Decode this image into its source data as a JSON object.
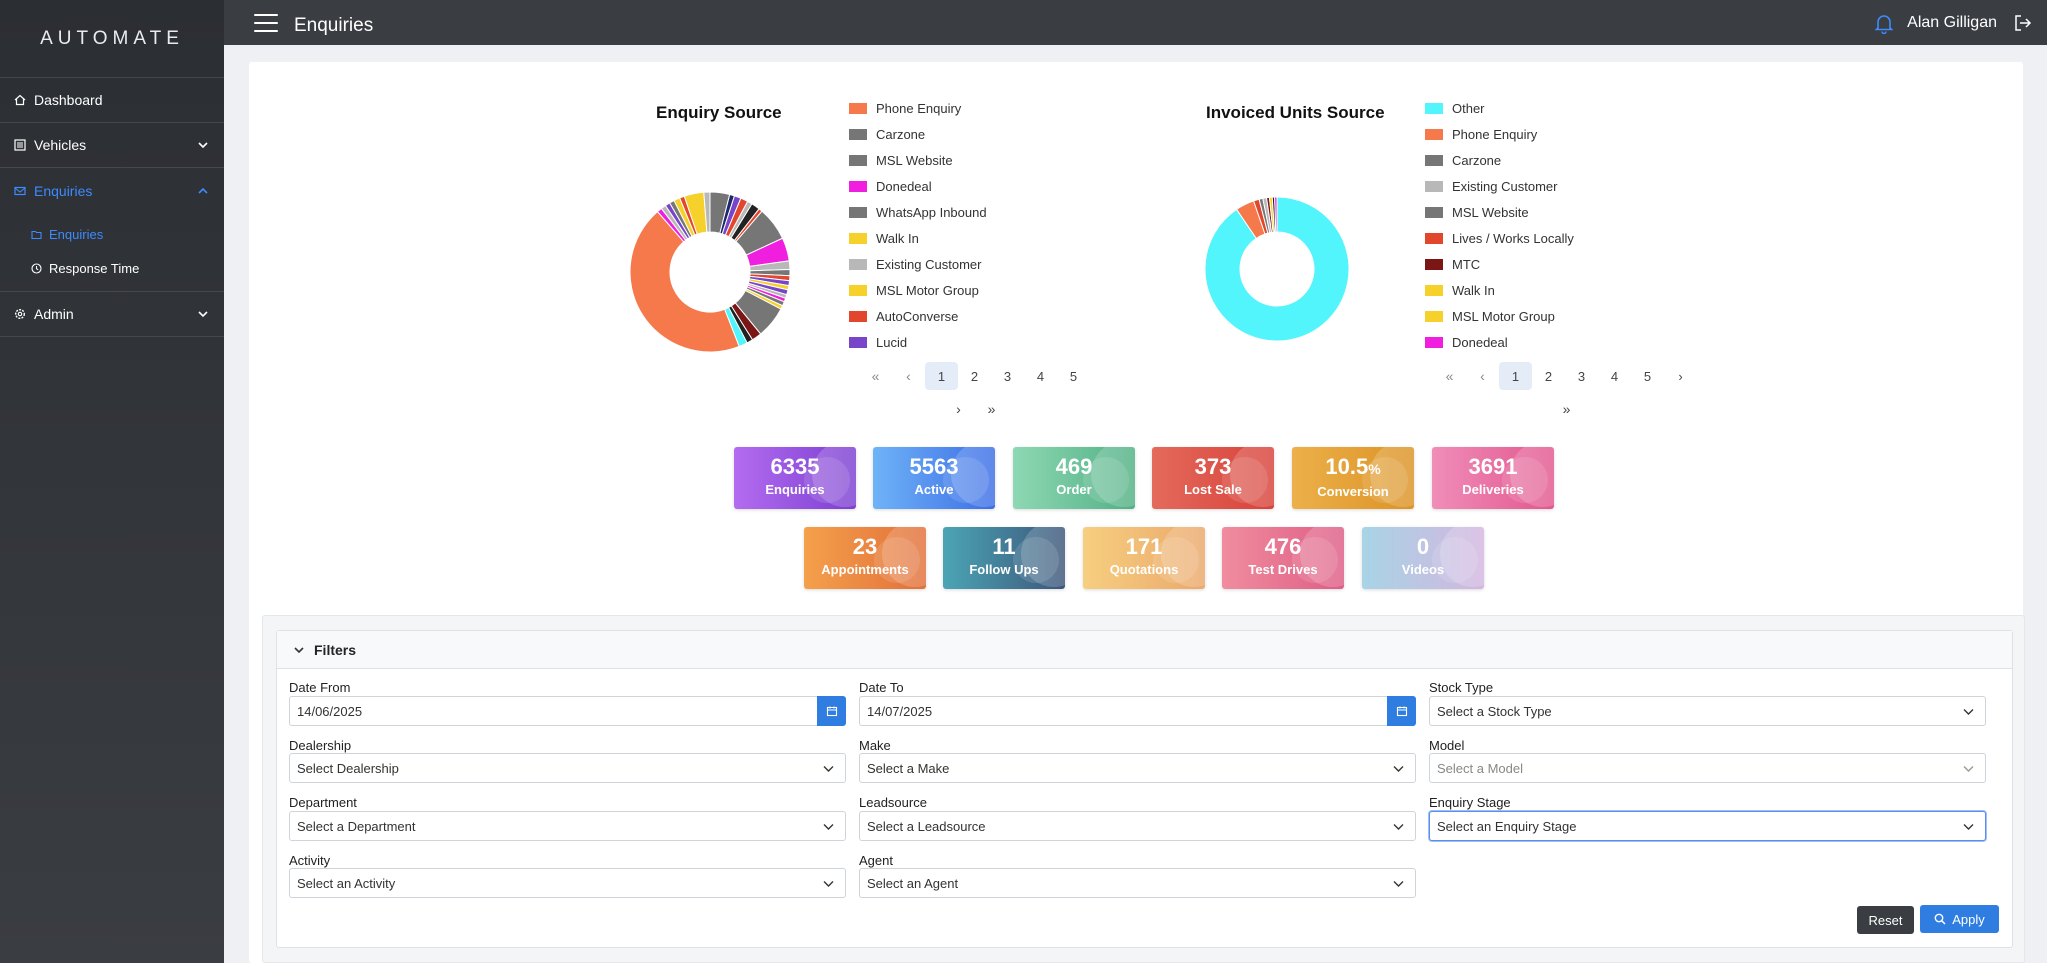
{
  "app": {
    "logo_text": "AUTOMATE"
  },
  "sidebar": {
    "items": [
      {
        "label": "Dashboard",
        "icon": "home-icon"
      },
      {
        "label": "Vehicles",
        "icon": "list-icon"
      },
      {
        "label": "Enquiries",
        "icon": "mail-icon"
      },
      {
        "label": "Admin",
        "icon": "gear-icon"
      }
    ],
    "subitems": [
      {
        "label": "Enquiries",
        "icon": "folder-icon"
      },
      {
        "label": "Response Time",
        "icon": "clock-icon"
      }
    ]
  },
  "header": {
    "title": "Enquiries",
    "user_name": "Alan Gilligan"
  },
  "enquiry_chart": {
    "title": "Enquiry Source",
    "legend": [
      {
        "label": "Phone Enquiry",
        "color": "#f5794a"
      },
      {
        "label": "Carzone",
        "color": "#767676"
      },
      {
        "label": "MSL Website",
        "color": "#767676"
      },
      {
        "label": "Donedeal",
        "color": "#f01fe0"
      },
      {
        "label": "WhatsApp Inbound",
        "color": "#767676"
      },
      {
        "label": "Walk In",
        "color": "#f6d02b"
      },
      {
        "label": "Existing Customer",
        "color": "#b8b8b8"
      },
      {
        "label": "MSL Motor Group",
        "color": "#f6d02b"
      },
      {
        "label": "AutoConverse",
        "color": "#e2472d"
      },
      {
        "label": "Lucid",
        "color": "#7845c9"
      }
    ],
    "pages": [
      "1",
      "2",
      "3",
      "4",
      "5"
    ],
    "current_page": "1"
  },
  "invoiced_chart": {
    "title": "Invoiced Units Source",
    "legend": [
      {
        "label": "Other",
        "color": "#52f5fb"
      },
      {
        "label": "Phone Enquiry",
        "color": "#f5794a"
      },
      {
        "label": "Carzone",
        "color": "#767676"
      },
      {
        "label": "Existing Customer",
        "color": "#b8b8b8"
      },
      {
        "label": "MSL Website",
        "color": "#767676"
      },
      {
        "label": "Lives / Works Locally",
        "color": "#e2472d"
      },
      {
        "label": "MTC",
        "color": "#7a1616"
      },
      {
        "label": "Walk In",
        "color": "#f6d02b"
      },
      {
        "label": "MSL Motor Group",
        "color": "#f6d02b"
      },
      {
        "label": "Donedeal",
        "color": "#f01fe0"
      }
    ],
    "pages": [
      "1",
      "2",
      "3",
      "4",
      "5"
    ],
    "current_page": "1"
  },
  "stats_row1": [
    {
      "value": "6335",
      "label": "Enquiries",
      "suffix": "",
      "colors": [
        "#b36cf0",
        "#7c3fd1"
      ]
    },
    {
      "value": "5563",
      "label": "Active",
      "suffix": "",
      "colors": [
        "#6fb3f7",
        "#3c6ee6"
      ]
    },
    {
      "value": "469",
      "label": "Order",
      "suffix": "",
      "colors": [
        "#8ed8b4",
        "#52b085"
      ]
    },
    {
      "value": "373",
      "label": "Lost Sale",
      "suffix": "",
      "colors": [
        "#e46a5c",
        "#d8423a"
      ]
    },
    {
      "value": "10.5",
      "label": "Conversion",
      "suffix": "%",
      "colors": [
        "#ecb04a",
        "#dc9325"
      ]
    },
    {
      "value": "3691",
      "label": "Deliveries",
      "suffix": "",
      "colors": [
        "#f08db8",
        "#e2578f"
      ]
    }
  ],
  "stats_row2": [
    {
      "value": "23",
      "label": "Appointments",
      "suffix": "",
      "colors": [
        "#f4a04c",
        "#e2703a"
      ]
    },
    {
      "value": "11",
      "label": "Follow Ups",
      "suffix": "",
      "colors": [
        "#4ba5b5",
        "#3c567a"
      ]
    },
    {
      "value": "171",
      "label": "Quotations",
      "suffix": "",
      "colors": [
        "#f6cf80",
        "#eba86b"
      ]
    },
    {
      "value": "476",
      "label": "Test Drives",
      "suffix": "",
      "colors": [
        "#f08d9e",
        "#de5d86"
      ]
    },
    {
      "value": "0",
      "label": "Videos",
      "suffix": "",
      "colors": [
        "#a8d4e6",
        "#d4b6e0"
      ]
    }
  ],
  "filters": {
    "title": "Filters",
    "date_from": {
      "label": "Date From",
      "value": "14/06/2025"
    },
    "date_to": {
      "label": "Date To",
      "value": "14/07/2025"
    },
    "stock_type": {
      "label": "Stock Type",
      "placeholder": "Select a Stock Type"
    },
    "dealership": {
      "label": "Dealership",
      "placeholder": "Select Dealership"
    },
    "make": {
      "label": "Make",
      "placeholder": "Select a Make"
    },
    "model": {
      "label": "Model",
      "placeholder": "Select a Model"
    },
    "department": {
      "label": "Department",
      "placeholder": "Select a Department"
    },
    "leadsource": {
      "label": "Leadsource",
      "placeholder": "Select a Leadsource"
    },
    "enquiry_stage": {
      "label": "Enquiry Stage",
      "placeholder": "Select an Enquiry Stage"
    },
    "activity": {
      "label": "Activity",
      "placeholder": "Select an Activity"
    },
    "agent": {
      "label": "Agent",
      "placeholder": "Select an Agent"
    },
    "reset_label": "Reset",
    "apply_label": "Apply"
  }
}
